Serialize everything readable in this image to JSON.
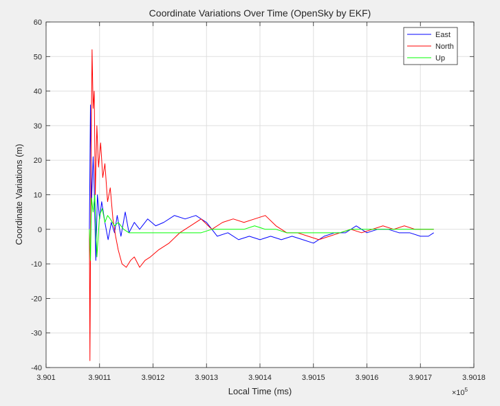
{
  "chart_data": {
    "type": "line",
    "title": "Coordinate Variations Over Time (OpenSky by EKF)",
    "xlabel": "Local Time (ms)",
    "ylabel": "Coordinate Variations (m)",
    "x_multiplier_label": "×10",
    "x_multiplier_exponent": "5",
    "xlim": [
      3.901,
      3.9018
    ],
    "ylim": [
      -40,
      60
    ],
    "xticks": [
      3.901,
      3.9011,
      3.9012,
      3.9013,
      3.9014,
      3.9015,
      3.9016,
      3.9017,
      3.9018
    ],
    "xtick_labels": [
      "3.901",
      "3.9011",
      "3.9012",
      "3.9013",
      "3.9014",
      "3.9015",
      "3.9016",
      "3.9017",
      "3.9018"
    ],
    "yticks": [
      -40,
      -30,
      -20,
      -10,
      0,
      10,
      20,
      30,
      40,
      50,
      60
    ],
    "ytick_labels": [
      "-40",
      "-30",
      "-20",
      "-10",
      "0",
      "10",
      "20",
      "30",
      "40",
      "50",
      "60"
    ],
    "grid": true,
    "legend_position": "top-right",
    "series": [
      {
        "name": "East",
        "color": "#0000ff",
        "x": [
          3.901081,
          3.901083,
          3.901085,
          3.901088,
          3.90109,
          3.901093,
          3.901096,
          3.9011,
          3.901104,
          3.90111,
          3.901116,
          3.901122,
          3.901128,
          3.901133,
          3.90114,
          3.901148,
          3.901155,
          3.901165,
          3.901175,
          3.90119,
          3.901205,
          3.90122,
          3.90124,
          3.90126,
          3.90128,
          3.9013,
          3.90132,
          3.90134,
          3.90136,
          3.90138,
          3.9014,
          3.90142,
          3.90144,
          3.90146,
          3.90148,
          3.9015,
          3.90152,
          3.90154,
          3.90156,
          3.90158,
          3.9016,
          3.90162,
          3.90164,
          3.90166,
          3.90168,
          3.9017,
          3.901715,
          3.901725
        ],
        "y": [
          0,
          36,
          8,
          21,
          12,
          -9,
          10,
          3,
          8,
          2,
          -3,
          2,
          -1,
          4,
          -2,
          5,
          -1,
          2,
          0,
          3,
          1,
          2,
          4,
          3,
          4,
          2,
          -2,
          -1,
          -3,
          -2,
          -3,
          -2,
          -3,
          -2,
          -3,
          -4,
          -2,
          -1,
          -1,
          1,
          -1,
          0,
          0,
          -1,
          -1,
          -2,
          -2,
          -1
        ]
      },
      {
        "name": "North",
        "color": "#ff0000",
        "x": [
          3.901081,
          3.901082,
          3.901084,
          3.901086,
          3.901088,
          3.90109,
          3.901092,
          3.901095,
          3.901098,
          3.901102,
          3.901106,
          3.90111,
          3.901115,
          3.90112,
          3.901125,
          3.90113,
          3.901135,
          3.901142,
          3.90115,
          3.901158,
          3.901165,
          3.901175,
          3.901185,
          3.901195,
          3.90121,
          3.90123,
          3.90125,
          3.90127,
          3.90129,
          3.90131,
          3.90133,
          3.90135,
          3.90137,
          3.90139,
          3.90141,
          3.90143,
          3.90145,
          3.90147,
          3.90149,
          3.90151,
          3.90153,
          3.90155,
          3.90157,
          3.90159,
          3.90161,
          3.90163,
          3.90165,
          3.90167,
          3.90169,
          3.90171,
          3.901725
        ],
        "y": [
          0,
          -38,
          20,
          52,
          35,
          40,
          10,
          30,
          18,
          25,
          15,
          19,
          8,
          12,
          3,
          -2,
          -6,
          -10,
          -11,
          -9,
          -8,
          -11,
          -9,
          -8,
          -6,
          -4,
          -1,
          1,
          3,
          0,
          2,
          3,
          2,
          3,
          4,
          1,
          -1,
          -1,
          -2,
          -3,
          -2,
          -1,
          0,
          -1,
          0,
          1,
          0,
          1,
          0,
          0,
          0
        ]
      },
      {
        "name": "Up",
        "color": "#00ff00",
        "x": [
          3.901081,
          3.901083,
          3.901085,
          3.901088,
          3.901091,
          3.901095,
          3.9011,
          3.901105,
          3.90111,
          3.901115,
          3.90112,
          3.901128,
          3.901135,
          3.901145,
          3.901155,
          3.901165,
          3.901175,
          3.90119,
          3.90121,
          3.90123,
          3.90125,
          3.90127,
          3.90129,
          3.90131,
          3.90133,
          3.90135,
          3.90137,
          3.90139,
          3.90141,
          3.90143,
          3.90145,
          3.90147,
          3.90149,
          3.90151,
          3.90153,
          3.90155,
          3.90157,
          3.90159,
          3.90161,
          3.90163,
          3.90165,
          3.90167,
          3.90169,
          3.90171,
          3.901725
        ],
        "y": [
          0,
          -9,
          9,
          5,
          10,
          -8,
          4,
          6,
          2,
          4,
          3,
          1,
          2,
          0,
          -1,
          -1,
          -1,
          -1,
          -1,
          -1,
          -1,
          -1,
          -1,
          0,
          0,
          0,
          0,
          1,
          0,
          0,
          -1,
          -1,
          -1,
          -1,
          -1,
          -1,
          0,
          0,
          0,
          0,
          0,
          0,
          0,
          0,
          0
        ]
      }
    ]
  }
}
